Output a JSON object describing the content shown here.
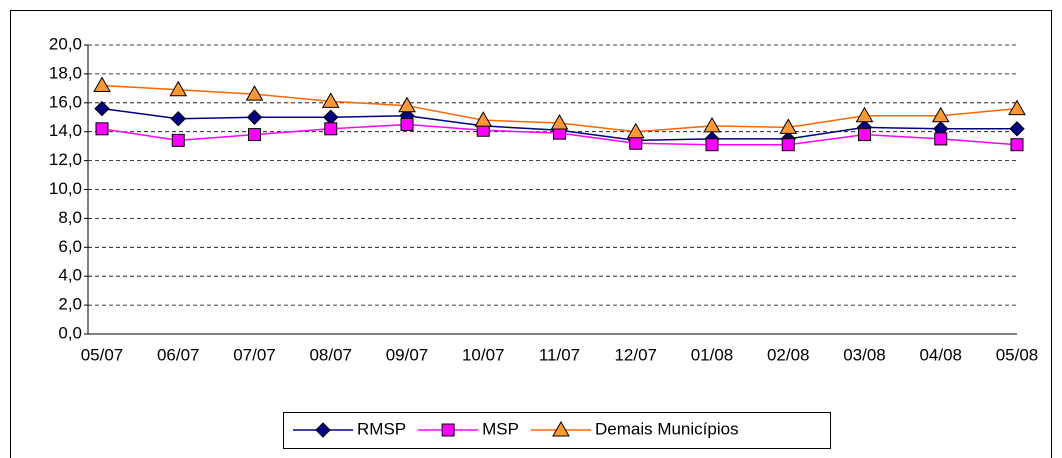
{
  "chart_data": {
    "type": "line",
    "categories": [
      "05/07",
      "06/07",
      "07/07",
      "08/07",
      "09/07",
      "10/07",
      "11/07",
      "12/07",
      "01/08",
      "02/08",
      "03/08",
      "04/08",
      "05/08"
    ],
    "series": [
      {
        "name": "RMSP",
        "color": "#000080",
        "marker": "diamond",
        "values": [
          15.6,
          14.9,
          15.0,
          15.0,
          15.1,
          14.4,
          14.1,
          13.4,
          13.5,
          13.5,
          14.3,
          14.2,
          14.2
        ]
      },
      {
        "name": "MSP",
        "color": "#ff00ff",
        "marker": "square",
        "values": [
          14.2,
          13.4,
          13.8,
          14.2,
          14.5,
          14.1,
          13.9,
          13.2,
          13.1,
          13.1,
          13.8,
          13.5,
          13.1
        ]
      },
      {
        "name": "Demais Municípios",
        "color": "#ff6600",
        "marker": "triangle",
        "values": [
          17.2,
          16.9,
          16.6,
          16.1,
          15.8,
          14.8,
          14.6,
          14.0,
          14.4,
          14.3,
          15.1,
          15.1,
          15.6
        ]
      }
    ],
    "ylim": [
      0,
      20
    ],
    "yticks": [
      {
        "value": 0,
        "label": "0,0"
      },
      {
        "value": 2,
        "label": "2,0"
      },
      {
        "value": 4,
        "label": "4,0"
      },
      {
        "value": 6,
        "label": "6,0"
      },
      {
        "value": 8,
        "label": "8,0"
      },
      {
        "value": 10,
        "label": "10,0"
      },
      {
        "value": 12,
        "label": "12,0"
      },
      {
        "value": 14,
        "label": "14,0"
      },
      {
        "value": 16,
        "label": "16,0"
      },
      {
        "value": 18,
        "label": "18,0"
      },
      {
        "value": 20,
        "label": "20,0"
      }
    ],
    "grid": true,
    "legend": "bottom"
  }
}
